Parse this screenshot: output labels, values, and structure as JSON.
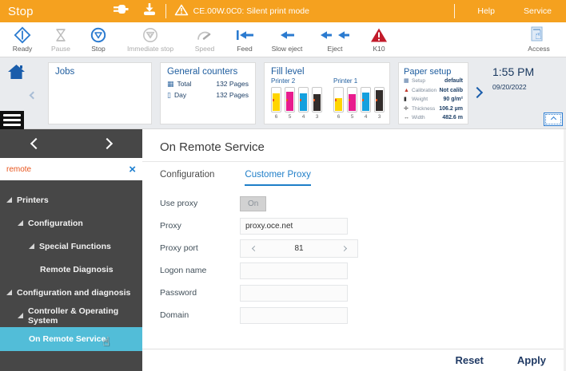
{
  "top_bar": {
    "title": "Stop",
    "message": "CE.00W.0C0: Silent print mode",
    "help_label": "Help",
    "service_label": "Service"
  },
  "toolbar": {
    "items": [
      {
        "label": "Ready",
        "enabled": true
      },
      {
        "label": "Pause",
        "enabled": false
      },
      {
        "label": "Stop",
        "enabled": true
      },
      {
        "label": "Immediate stop",
        "enabled": false
      },
      {
        "label": "Speed",
        "enabled": false
      },
      {
        "label": "Feed",
        "enabled": true
      },
      {
        "label": "Slow eject",
        "enabled": true
      },
      {
        "label": "Eject",
        "enabled": true
      },
      {
        "label": "K10",
        "enabled": true
      }
    ],
    "access_label": "Access"
  },
  "info_band": {
    "jobs_title": "Jobs",
    "general_counters": {
      "title": "General counters",
      "rows": [
        {
          "label": "Total",
          "value": "132 Pages"
        },
        {
          "label": "Day",
          "value": "132 Pages"
        }
      ]
    },
    "fill_level": {
      "title": "Fill level",
      "printers": [
        {
          "name": "Printer 2",
          "tanks": [
            {
              "ink": "yellow",
              "color": "#ffd500",
              "level": 75,
              "slot": "6"
            },
            {
              "ink": "magenta",
              "color": "#e81c8e",
              "level": 80,
              "slot": "5"
            },
            {
              "ink": "cyan",
              "color": "#14a0de",
              "level": 75,
              "slot": "4"
            },
            {
              "ink": "black",
              "color": "#332d2b",
              "level": 70,
              "slot": "3"
            }
          ]
        },
        {
          "name": "Printer 1",
          "tanks": [
            {
              "ink": "yellow",
              "color": "#ffd500",
              "level": 55,
              "slot": "6"
            },
            {
              "ink": "magenta",
              "color": "#e81c8e",
              "level": 70,
              "slot": "5"
            },
            {
              "ink": "cyan",
              "color": "#14a0de",
              "level": 78,
              "slot": "4"
            },
            {
              "ink": "black",
              "color": "#332d2b",
              "level": 88,
              "slot": "3"
            }
          ]
        }
      ]
    },
    "paper_setup": {
      "title": "Paper setup",
      "rows": [
        {
          "label": "Setup",
          "value": "default"
        },
        {
          "label": "Calibration",
          "value": "Not calib"
        },
        {
          "label": "Weight",
          "value": "90 g/m²"
        },
        {
          "label": "Thickness",
          "value": "106.2 µm"
        },
        {
          "label": "Width",
          "value": "482.6 m"
        }
      ]
    },
    "clock": {
      "time": "1:55 PM",
      "date": "09/20/2022"
    }
  },
  "sidebar": {
    "search_value": "remote",
    "items": [
      {
        "label": "Printers"
      },
      {
        "label": "Configuration"
      },
      {
        "label": "Special Functions"
      },
      {
        "label": "Remote Diagnosis"
      },
      {
        "label": "Configuration and diagnosis"
      },
      {
        "label": "Controller & Operating System"
      },
      {
        "label": "On Remote Service"
      }
    ]
  },
  "main": {
    "title": "On Remote Service",
    "tabs": [
      {
        "label": "Configuration"
      },
      {
        "label": "Customer Proxy"
      }
    ],
    "form": {
      "use_proxy_label": "Use proxy",
      "use_proxy_value": "On",
      "proxy_label": "Proxy",
      "proxy_value": "proxy.oce.net",
      "proxy_port_label": "Proxy port",
      "proxy_port_value": "81",
      "logon_label": "Logon name",
      "logon_value": "",
      "password_label": "Password",
      "password_value": "",
      "domain_label": "Domain",
      "domain_value": ""
    },
    "footer": {
      "reset_label": "Reset",
      "apply_label": "Apply"
    }
  },
  "colors": {
    "accent_orange": "#f5a11f",
    "accent_blue": "#2b7bd0",
    "selected_teal": "#52bdd8",
    "alert_red": "#c21b2b"
  }
}
